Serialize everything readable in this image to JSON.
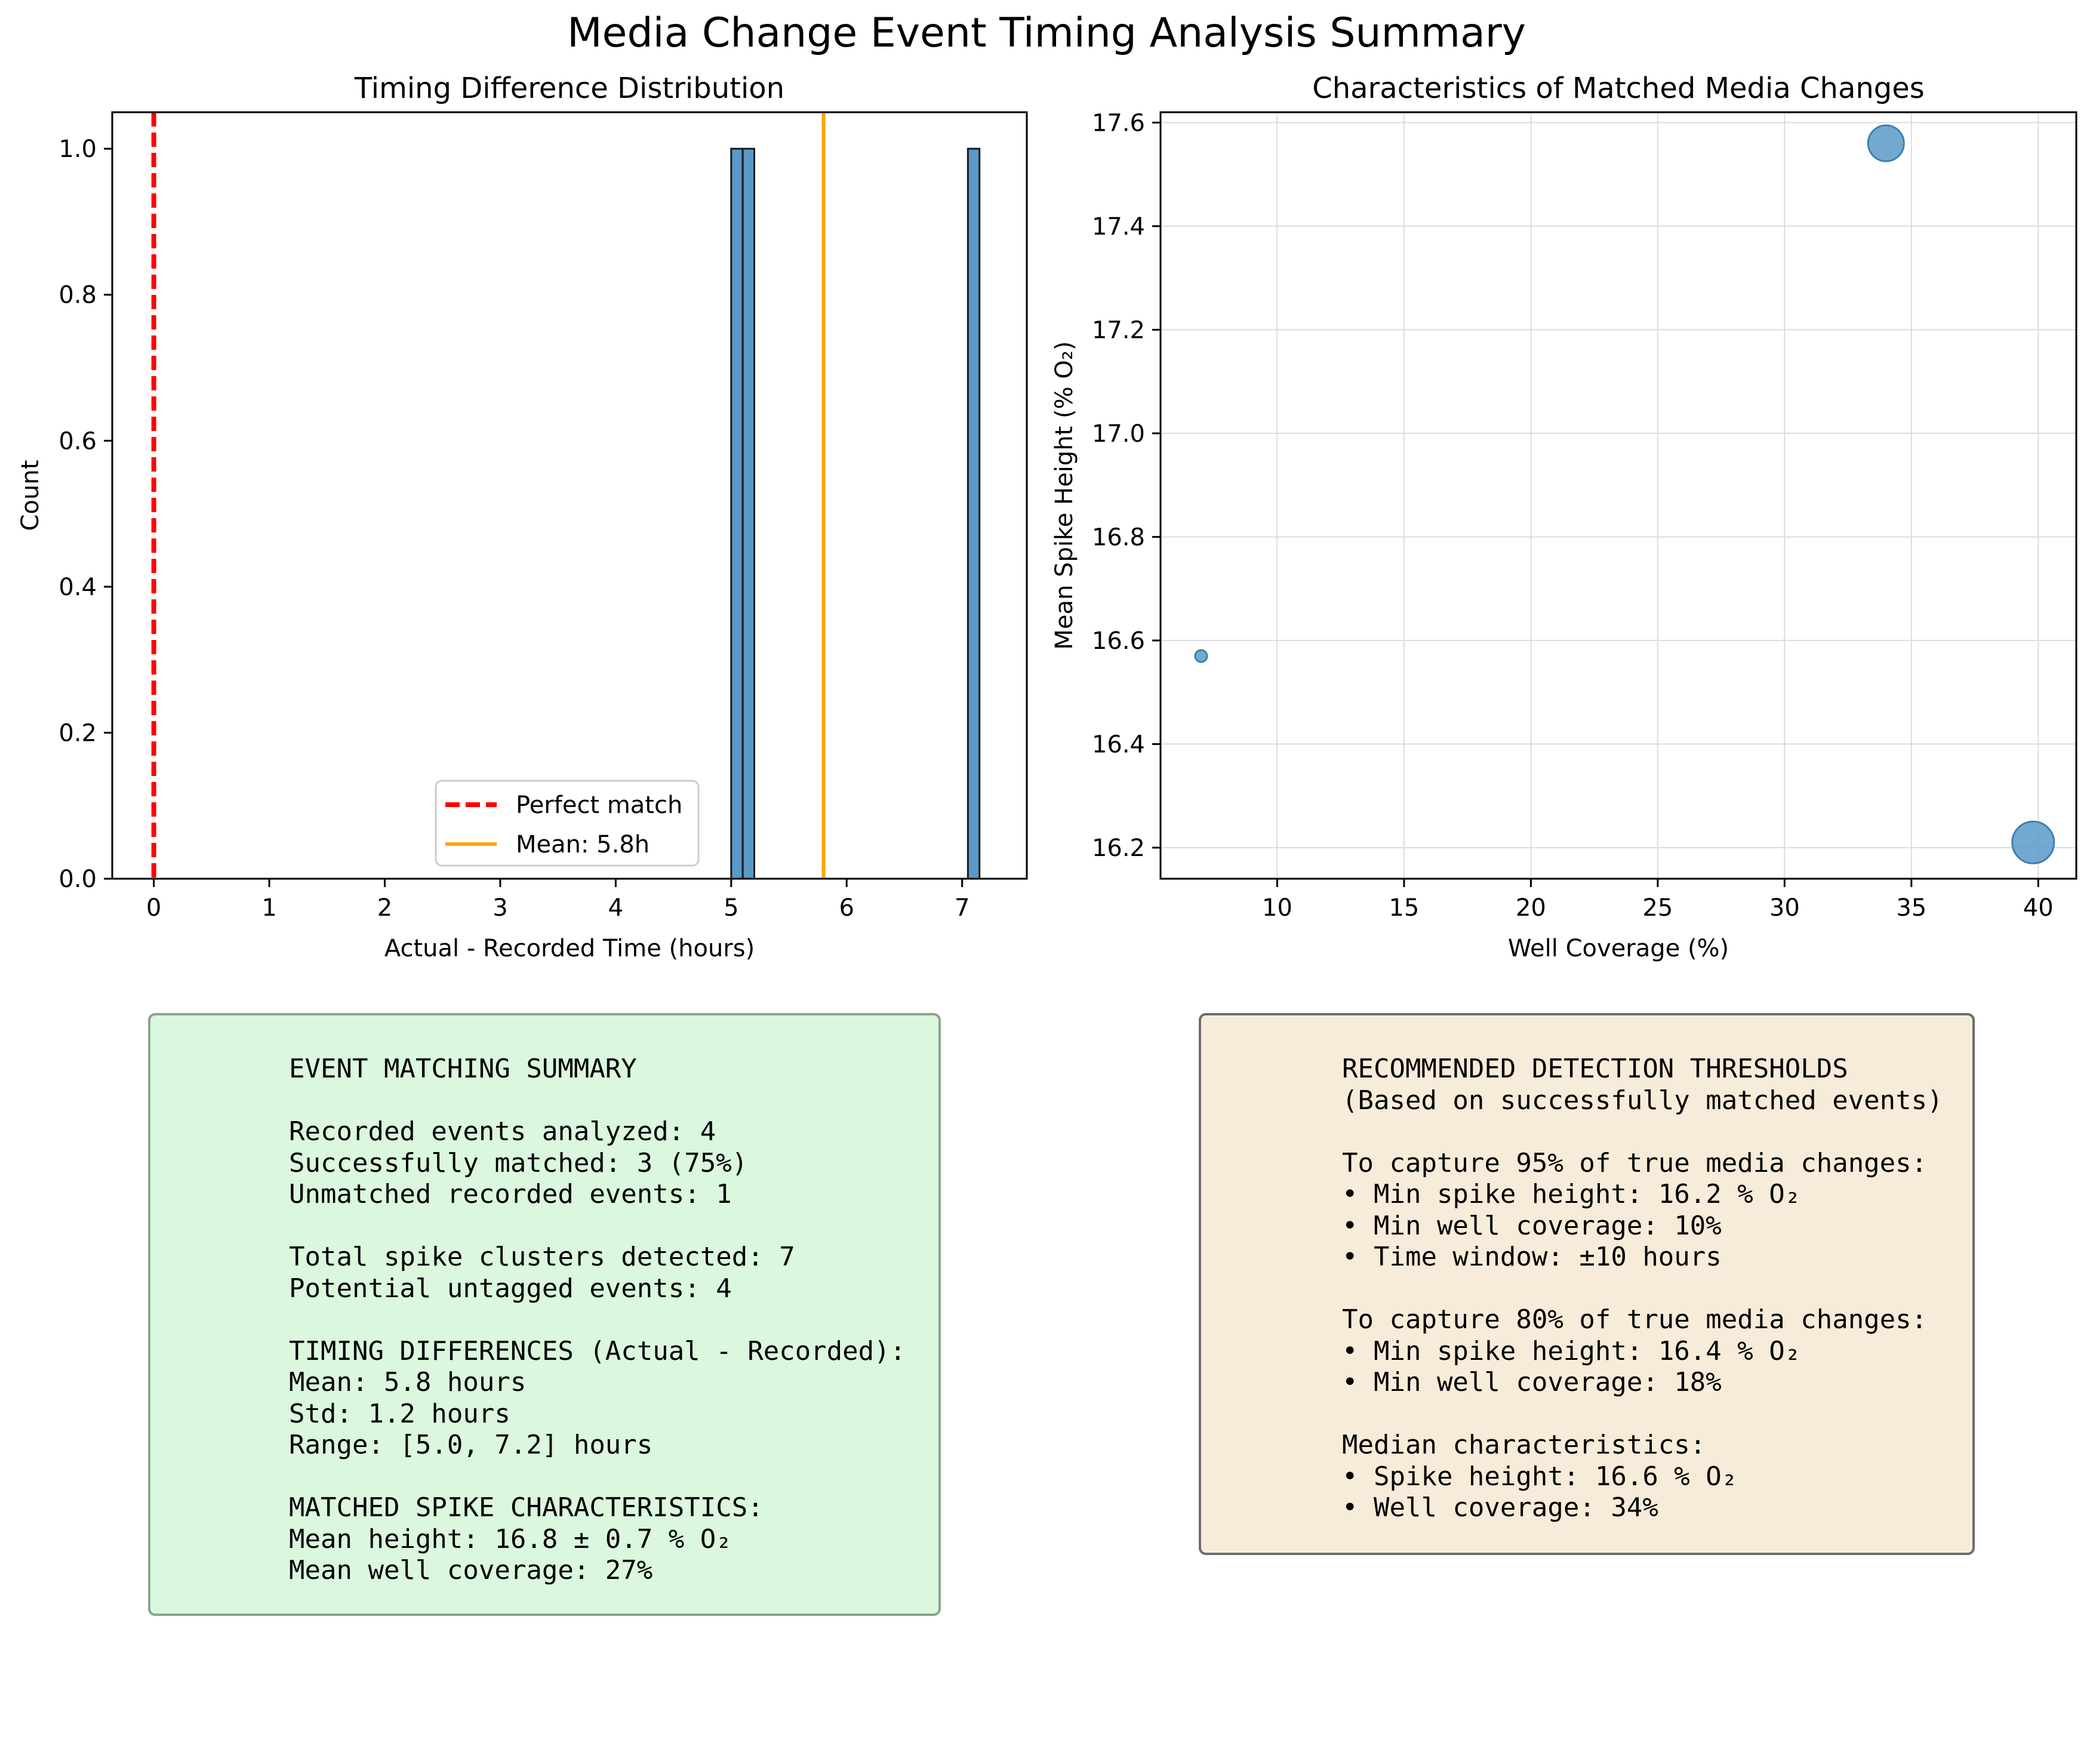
{
  "figure": {
    "title": "Media Change Event Timing Analysis Summary"
  },
  "chart_data": [
    {
      "type": "bar",
      "title": "Timing Difference Distribution",
      "xlabel": "Actual - Recorded Time (hours)",
      "ylabel": "Count",
      "xlim": [
        -0.36,
        7.56
      ],
      "ylim": [
        0,
        1.05
      ],
      "xticks": [
        "0",
        "1",
        "2",
        "3",
        "4",
        "5",
        "6",
        "7"
      ],
      "yticks": [
        "0.0",
        "0.2",
        "0.4",
        "0.6",
        "0.8",
        "1.0"
      ],
      "bins": [
        {
          "x0": 5.0,
          "x1": 5.1,
          "count": 1
        },
        {
          "x0": 5.1,
          "x1": 5.2,
          "count": 1
        },
        {
          "x0": 7.05,
          "x1": 7.15,
          "count": 1
        }
      ],
      "reference_lines": [
        {
          "label": "Perfect match",
          "x": 0,
          "color": "#ff0000",
          "style": "dashed"
        },
        {
          "label": "Mean: 5.8h",
          "x": 5.8,
          "color": "#ffa500",
          "style": "solid"
        }
      ],
      "bar_color": "#5a9ac8",
      "legend_position": "lower-center",
      "grid": false
    },
    {
      "type": "scatter",
      "title": "Characteristics of Matched Media Changes",
      "xlabel": "Well Coverage (%)",
      "ylabel": "Mean Spike Height (% O₂)",
      "xlim": [
        5.4,
        41.5
      ],
      "ylim": [
        16.14,
        17.62
      ],
      "xticks": [
        "10",
        "15",
        "20",
        "25",
        "30",
        "35",
        "40"
      ],
      "yticks": [
        "16.2",
        "16.4",
        "16.6",
        "16.8",
        "17.0",
        "17.2",
        "17.4",
        "17.6"
      ],
      "points": [
        {
          "x": 7.0,
          "y": 16.57,
          "size": 1
        },
        {
          "x": 34.0,
          "y": 17.56,
          "size": 3
        },
        {
          "x": 39.8,
          "y": 16.21,
          "size": 3.5
        }
      ],
      "point_color": "#5a9ac8",
      "grid": true
    }
  ],
  "summary_box": {
    "lines": [
      "EVENT MATCHING SUMMARY",
      "",
      "Recorded events analyzed: 4",
      "Successfully matched: 3 (75%)",
      "Unmatched recorded events: 1",
      "",
      "Total spike clusters detected: 7",
      "Potential untagged events: 4",
      "",
      "TIMING DIFFERENCES (Actual - Recorded):",
      "Mean: 5.8 hours",
      "Std: 1.2 hours",
      "Range: [5.0, 7.2] hours",
      "",
      "MATCHED SPIKE CHARACTERISTICS:",
      "Mean height: 16.8 ± 0.7 % O₂",
      "Mean well coverage: 27%"
    ]
  },
  "thresholds_box": {
    "lines": [
      "RECOMMENDED DETECTION THRESHOLDS",
      "(Based on successfully matched events)",
      "",
      "To capture 95% of true media changes:",
      "• Min spike height: 16.2 % O₂",
      "• Min well coverage: 10%",
      "• Time window: ±10 hours",
      "",
      "To capture 80% of true media changes:",
      "• Min spike height: 16.4 % O₂",
      "• Min well coverage: 18%",
      "",
      "Median characteristics:",
      "• Spike height: 16.6 % O₂",
      "• Well coverage: 34%"
    ]
  }
}
